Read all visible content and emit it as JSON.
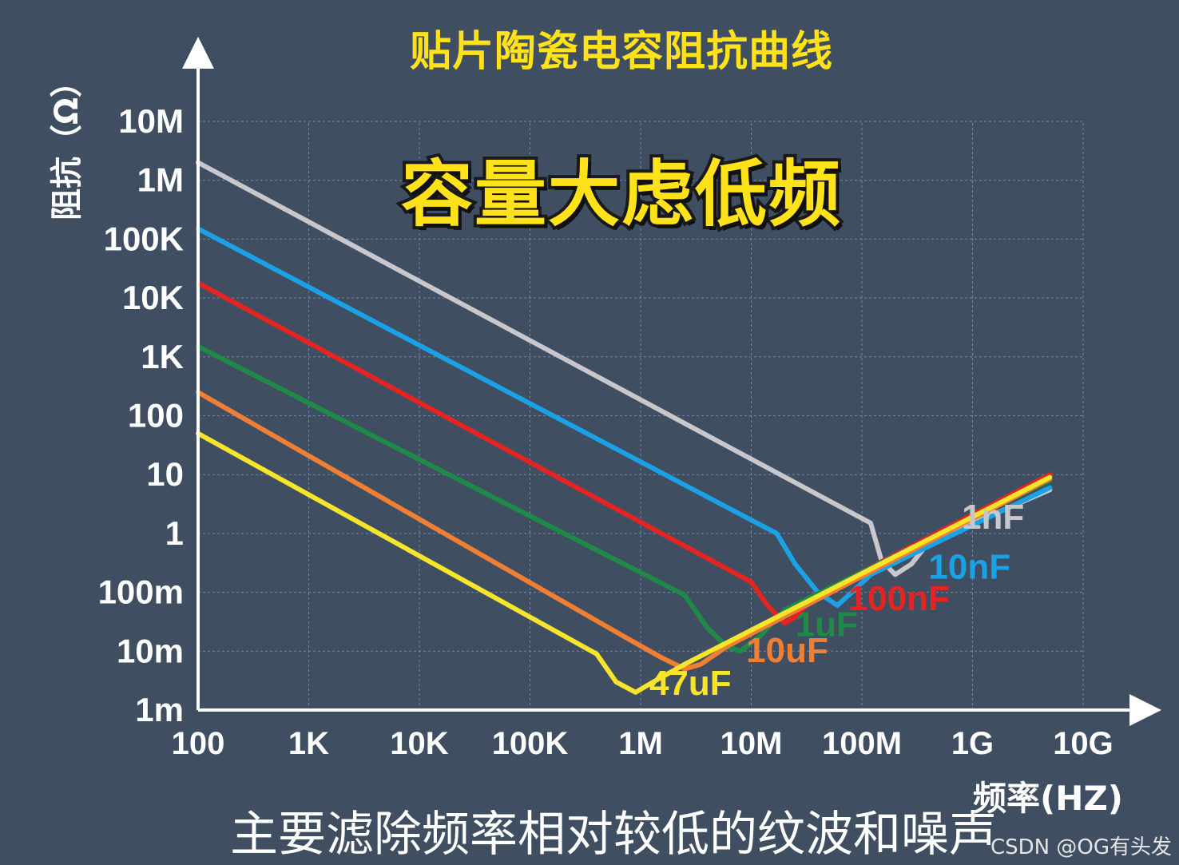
{
  "title": "贴片陶瓷电容阻抗曲线",
  "headline": "容量大虑低频",
  "caption": "主要滤除频率相对较低的纹波和噪声",
  "watermark": "CSDN @OG有头发",
  "colors": {
    "background": "#404e62",
    "title": "#ffe21a",
    "grid": "#6f86ac",
    "axis": "#ffffff"
  },
  "chart_data": {
    "type": "line",
    "title": "贴片陶瓷电容阻抗曲线",
    "xlabel": "频率(HZ)",
    "ylabel": "阻抗（Ω）",
    "x_scale": "log",
    "y_scale": "log",
    "xlim": [
      100,
      10000000000
    ],
    "ylim": [
      0.001,
      10000000
    ],
    "grid": true,
    "x_ticks": [
      {
        "value": 100,
        "label": "100"
      },
      {
        "value": 1000,
        "label": "1K"
      },
      {
        "value": 10000,
        "label": "10K"
      },
      {
        "value": 100000,
        "label": "100K"
      },
      {
        "value": 1000000,
        "label": "1M"
      },
      {
        "value": 10000000,
        "label": "10M"
      },
      {
        "value": 100000000,
        "label": "100M"
      },
      {
        "value": 1000000000,
        "label": "1G"
      },
      {
        "value": 10000000000,
        "label": "10G"
      }
    ],
    "y_ticks": [
      {
        "value": 0.001,
        "label": "1m"
      },
      {
        "value": 0.01,
        "label": "10m"
      },
      {
        "value": 0.1,
        "label": "100m"
      },
      {
        "value": 1,
        "label": "1"
      },
      {
        "value": 10,
        "label": "10"
      },
      {
        "value": 100,
        "label": "100"
      },
      {
        "value": 1000,
        "label": "1K"
      },
      {
        "value": 10000,
        "label": "10K"
      },
      {
        "value": 100000,
        "label": "100K"
      },
      {
        "value": 1000000,
        "label": "1M"
      },
      {
        "value": 10000000,
        "label": "10M"
      }
    ],
    "series": [
      {
        "name": "1nF",
        "color": "#c8c8cc",
        "label_color": "#c8c8cc",
        "points": [
          [
            100,
            2000000
          ],
          [
            120000000,
            1.5
          ],
          [
            150000000,
            0.35
          ],
          [
            200000000,
            0.2
          ],
          [
            280000000,
            0.3
          ],
          [
            400000000,
            0.7
          ],
          [
            5000000000,
            5.5
          ]
        ]
      },
      {
        "name": "10nF",
        "color": "#1ba1e6",
        "label_color": "#1ba1e6",
        "points": [
          [
            100,
            150000
          ],
          [
            17000000,
            1
          ],
          [
            25000000,
            0.3
          ],
          [
            40000000,
            0.1
          ],
          [
            60000000,
            0.06
          ],
          [
            90000000,
            0.12
          ],
          [
            120000000,
            0.2
          ],
          [
            5000000000,
            6
          ]
        ]
      },
      {
        "name": "100nF",
        "color": "#e52421",
        "label_color": "#e52421",
        "points": [
          [
            100,
            18000
          ],
          [
            10000000,
            0.15
          ],
          [
            14000000,
            0.06
          ],
          [
            20000000,
            0.03
          ],
          [
            26000000,
            0.04
          ],
          [
            35000000,
            0.08
          ],
          [
            5000000000,
            10
          ]
        ]
      },
      {
        "name": "1uF",
        "color": "#1f8a48",
        "label_color": "#1f8a48",
        "points": [
          [
            100,
            1500
          ],
          [
            2500000,
            0.09
          ],
          [
            4000000,
            0.025
          ],
          [
            6000000,
            0.012
          ],
          [
            8000000,
            0.01
          ],
          [
            12000000,
            0.018
          ],
          [
            20000000,
            0.05
          ],
          [
            5000000000,
            8
          ]
        ]
      },
      {
        "name": "10uF",
        "color": "#f07f33",
        "label_color": "#f07f33",
        "points": [
          [
            100,
            250
          ],
          [
            700000,
            0.018
          ],
          [
            1500000,
            0.008
          ],
          [
            2500000,
            0.005
          ],
          [
            3500000,
            0.006
          ],
          [
            6000000,
            0.012
          ],
          [
            5000000000,
            8.5
          ]
        ]
      },
      {
        "name": "47uF",
        "color": "#f6e52a",
        "label_color": "#f6e52a",
        "points": [
          [
            100,
            50
          ],
          [
            400000,
            0.009
          ],
          [
            600000,
            0.003
          ],
          [
            900000,
            0.002
          ],
          [
            1300000,
            0.003
          ],
          [
            2500000,
            0.006
          ],
          [
            5000000000,
            9
          ]
        ]
      }
    ],
    "annotations": [
      {
        "text": "1nF",
        "x": 800000000,
        "y": 1.2,
        "color": "#c8c8cc"
      },
      {
        "text": "10nF",
        "x": 400000000,
        "y": 0.17,
        "color": "#1ba1e6"
      },
      {
        "text": "100nF",
        "x": 75000000,
        "y": 0.05,
        "color": "#e52421"
      },
      {
        "text": "1uF",
        "x": 25000000,
        "y": 0.018,
        "color": "#1f8a48"
      },
      {
        "text": "10uF",
        "x": 9000000,
        "y": 0.0065,
        "color": "#f07f33"
      },
      {
        "text": "47uF",
        "x": 1200000,
        "y": 0.0018,
        "color": "#f6e52a"
      }
    ]
  }
}
